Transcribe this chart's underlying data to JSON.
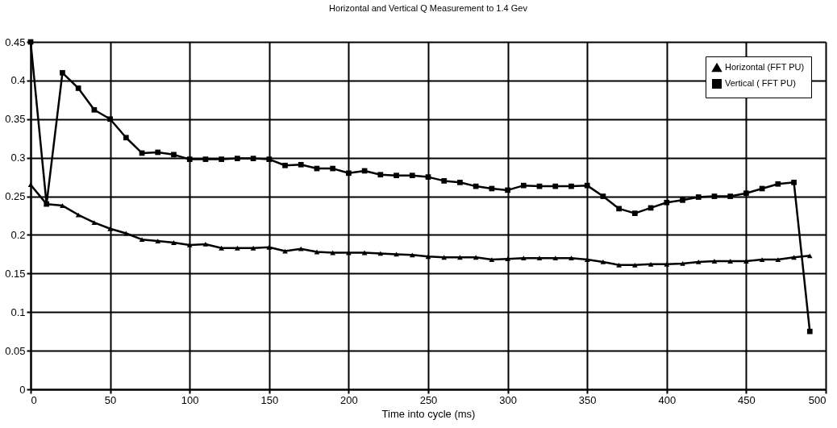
{
  "chart_data": {
    "type": "line",
    "title": "Horizontal and Vertical Q Measurement to 1.4 Gev",
    "xlabel": "Time into cycle (ms)",
    "x": [
      0,
      10,
      20,
      30,
      40,
      50,
      60,
      70,
      80,
      90,
      100,
      110,
      120,
      130,
      140,
      150,
      160,
      170,
      180,
      190,
      200,
      210,
      220,
      230,
      240,
      250,
      260,
      270,
      280,
      290,
      300,
      310,
      320,
      330,
      340,
      350,
      360,
      370,
      380,
      390,
      400,
      410,
      420,
      430,
      440,
      450,
      460,
      470,
      480,
      490
    ],
    "series": [
      {
        "name": "Horizontal (FFT PU)",
        "color": "#000000",
        "marker": "triangle",
        "values": [
          0.265,
          0.24,
          0.238,
          0.226,
          0.216,
          0.208,
          0.202,
          0.194,
          0.192,
          0.19,
          0.187,
          0.188,
          0.183,
          0.183,
          0.183,
          0.184,
          0.179,
          0.182,
          0.178,
          0.177,
          0.177,
          0.177,
          0.176,
          0.175,
          0.174,
          0.172,
          0.171,
          0.171,
          0.171,
          0.168,
          0.169,
          0.17,
          0.17,
          0.17,
          0.17,
          0.168,
          0.165,
          0.161,
          0.161,
          0.162,
          0.162,
          0.163,
          0.165,
          0.166,
          0.166,
          0.166,
          0.168,
          0.168,
          0.171,
          0.173
        ]
      },
      {
        "name": "Vertical ( FFT PU)",
        "color": "#000000",
        "marker": "square",
        "values": [
          0.45,
          0.24,
          0.41,
          0.39,
          0.362,
          0.35,
          0.326,
          0.306,
          0.307,
          0.304,
          0.298,
          0.298,
          0.298,
          0.299,
          0.299,
          0.298,
          0.29,
          0.291,
          0.286,
          0.286,
          0.28,
          0.283,
          0.278,
          0.277,
          0.277,
          0.275,
          0.27,
          0.268,
          0.263,
          0.26,
          0.258,
          0.264,
          0.263,
          0.263,
          0.263,
          0.264,
          0.25,
          0.234,
          0.228,
          0.235,
          0.242,
          0.245,
          0.249,
          0.25,
          0.25,
          0.254,
          0.26,
          0.266,
          0.268,
          0.075
        ]
      }
    ],
    "xlim": [
      0,
      500
    ],
    "xticks": [
      0,
      50,
      100,
      150,
      200,
      250,
      300,
      350,
      400,
      450,
      500
    ],
    "ylim": [
      0,
      0.45
    ],
    "yticks": [
      0,
      0.05,
      0.1,
      0.15,
      0.2,
      0.25,
      0.3,
      0.35,
      0.4,
      0.45
    ],
    "grid": true,
    "legend": "top right",
    "line_style": "solid"
  }
}
